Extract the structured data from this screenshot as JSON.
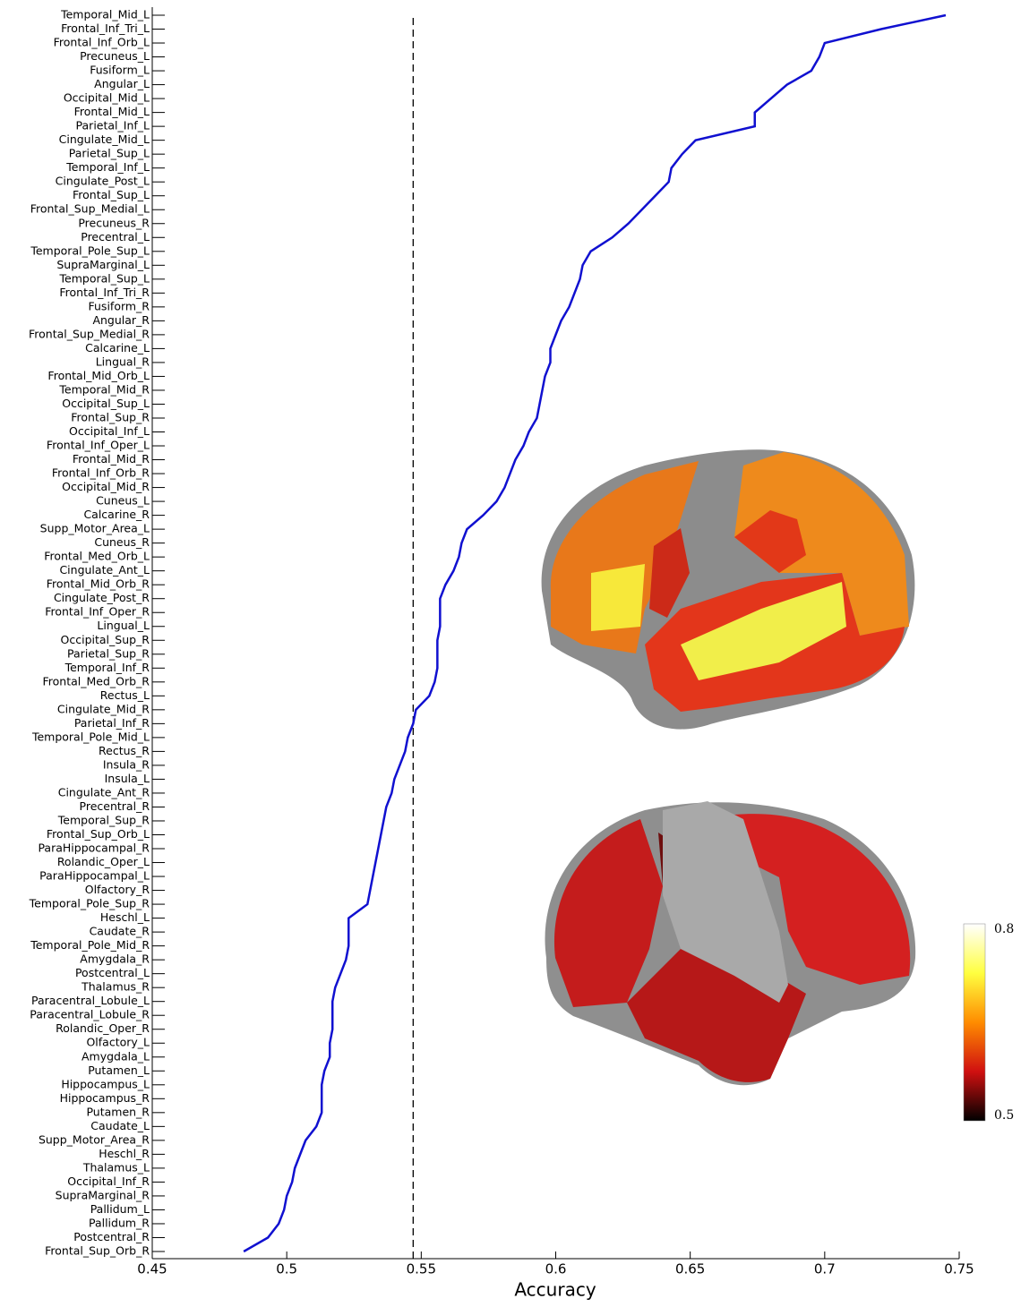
{
  "chart_data": {
    "type": "line",
    "xlabel": "Accuracy",
    "categories": [
      "Temporal_Mid_L",
      "Frontal_Inf_Tri_L",
      "Frontal_Inf_Orb_L",
      "Precuneus_L",
      "Fusiform_L",
      "Angular_L",
      "Occipital_Mid_L",
      "Frontal_Mid_L",
      "Parietal_Inf_L",
      "Cingulate_Mid_L",
      "Parietal_Sup_L",
      "Temporal_Inf_L",
      "Cingulate_Post_L",
      "Frontal_Sup_L",
      "Frontal_Sup_Medial_L",
      "Precuneus_R",
      "Precentral_L",
      "Temporal_Pole_Sup_L",
      "SupraMarginal_L",
      "Temporal_Sup_L",
      "Frontal_Inf_Tri_R",
      "Fusiform_R",
      "Angular_R",
      "Frontal_Sup_Medial_R",
      "Calcarine_L",
      "Lingual_R",
      "Frontal_Mid_Orb_L",
      "Temporal_Mid_R",
      "Occipital_Sup_L",
      "Frontal_Sup_R",
      "Occipital_Inf_L",
      "Frontal_Inf_Oper_L",
      "Frontal_Mid_R",
      "Frontal_Inf_Orb_R",
      "Occipital_Mid_R",
      "Cuneus_L",
      "Calcarine_R",
      "Supp_Motor_Area_L",
      "Cuneus_R",
      "Frontal_Med_Orb_L",
      "Cingulate_Ant_L",
      "Frontal_Mid_Orb_R",
      "Cingulate_Post_R",
      "Frontal_Inf_Oper_R",
      "Lingual_L",
      "Occipital_Sup_R",
      "Parietal_Sup_R",
      "Temporal_Inf_R",
      "Frontal_Med_Orb_R",
      "Rectus_L",
      "Cingulate_Mid_R",
      "Parietal_Inf_R",
      "Temporal_Pole_Mid_L",
      "Rectus_R",
      "Insula_R",
      "Insula_L",
      "Cingulate_Ant_R",
      "Precentral_R",
      "Temporal_Sup_R",
      "Frontal_Sup_Orb_L",
      "ParaHippocampal_R",
      "Rolandic_Oper_L",
      "ParaHippocampal_L",
      "Olfactory_R",
      "Temporal_Pole_Sup_R",
      "Heschl_L",
      "Caudate_R",
      "Temporal_Pole_Mid_R",
      "Amygdala_R",
      "Postcentral_L",
      "Thalamus_R",
      "Paracentral_Lobule_L",
      "Paracentral_Lobule_R",
      "Rolandic_Oper_R",
      "Olfactory_L",
      "Amygdala_L",
      "Putamen_L",
      "Hippocampus_L",
      "Hippocampus_R",
      "Putamen_R",
      "Caudate_L",
      "Supp_Motor_Area_R",
      "Heschl_R",
      "Thalamus_L",
      "Occipital_Inf_R",
      "SupraMarginal_R",
      "Pallidum_L",
      "Pallidum_R",
      "Postcentral_R",
      "Frontal_Sup_Orb_R"
    ],
    "values": [
      0.745,
      0.721,
      0.7,
      0.698,
      0.695,
      0.686,
      0.68,
      0.674,
      0.674,
      0.652,
      0.647,
      0.643,
      0.642,
      0.637,
      0.632,
      0.627,
      0.621,
      0.613,
      0.61,
      0.609,
      0.607,
      0.605,
      0.602,
      0.6,
      0.598,
      0.598,
      0.596,
      0.595,
      0.594,
      0.593,
      0.59,
      0.588,
      0.585,
      0.583,
      0.581,
      0.578,
      0.573,
      0.567,
      0.565,
      0.564,
      0.562,
      0.559,
      0.557,
      0.557,
      0.557,
      0.556,
      0.556,
      0.556,
      0.555,
      0.553,
      0.548,
      0.547,
      0.545,
      0.544,
      0.542,
      0.54,
      0.539,
      0.537,
      0.536,
      0.535,
      0.534,
      0.533,
      0.532,
      0.531,
      0.53,
      0.523,
      0.523,
      0.523,
      0.522,
      0.52,
      0.518,
      0.517,
      0.517,
      0.517,
      0.516,
      0.516,
      0.514,
      0.513,
      0.513,
      0.513,
      0.511,
      0.507,
      0.505,
      0.503,
      0.502,
      0.5,
      0.499,
      0.497,
      0.493,
      0.484
    ],
    "color": "#1010d0",
    "xlim": [
      0.45,
      0.75
    ],
    "xticks": [
      0.45,
      0.5,
      0.55,
      0.6,
      0.65,
      0.7,
      0.75
    ],
    "reference_line": 0.547,
    "colorbar": {
      "ticks": [
        0.5,
        0.8
      ],
      "colors": [
        "#000000",
        "#d01010",
        "#ff8c00",
        "#ffff40",
        "#ffffff"
      ]
    }
  }
}
